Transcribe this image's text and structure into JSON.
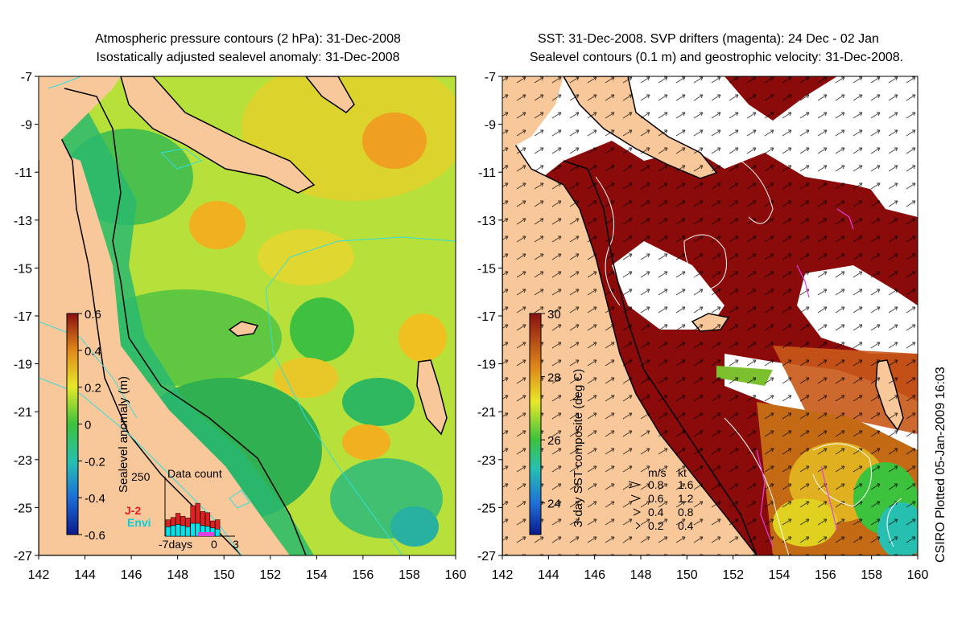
{
  "left_panel": {
    "title_line1": "Atmospheric pressure contours (2 hPa): 31-Dec-2008",
    "title_line2": "Isostatically adjusted sealevel anomaly: 31-Dec-2008",
    "y_ticks": [
      "-7",
      "-9",
      "-11",
      "-13",
      "-15",
      "-17",
      "-19",
      "-21",
      "-23",
      "-25",
      "-27"
    ],
    "x_ticks": [
      "142",
      "144",
      "146",
      "148",
      "150",
      "152",
      "154",
      "156",
      "158",
      "160"
    ],
    "colorbar": {
      "label": "Sealevel anomaly (m)",
      "ticks": [
        "0.6",
        "0.4",
        "0.2",
        "0",
        "-0.2",
        "-0.4",
        "-0.6"
      ],
      "range": [
        -0.6,
        0.6
      ]
    },
    "inset": {
      "title": "Data count",
      "ymax_label": "250",
      "x_labels": [
        "-7days",
        "0",
        "3"
      ],
      "series": [
        {
          "name": "J-2",
          "color": "#e02020",
          "values": [
            60,
            70,
            95,
            80,
            75,
            150,
            170,
            120,
            115,
            60,
            80,
            0,
            0,
            0
          ]
        },
        {
          "name": "Envi",
          "color": "#00e5ee",
          "values": [
            80,
            90,
            100,
            90,
            80,
            110,
            110,
            90,
            85,
            70,
            60,
            0,
            0,
            0
          ]
        }
      ],
      "ymax": 250
    }
  },
  "right_panel": {
    "title_line1": "SST: 31-Dec-2008. SVP drifters (magenta): 24 Dec - 02 Jan",
    "title_line2": "Sealevel contours (0.1 m) and geostrophic velocity: 31-Dec-2008.",
    "y_ticks": [
      "-7",
      "-9",
      "-11",
      "-13",
      "-15",
      "-17",
      "-19",
      "-21",
      "-23",
      "-25",
      "-27"
    ],
    "x_ticks": [
      "142",
      "144",
      "146",
      "148",
      "150",
      "152",
      "154",
      "156",
      "158",
      "160"
    ],
    "colorbar": {
      "label": "3-day SST composite (deg C)",
      "ticks": [
        "30",
        "28",
        "26",
        "24"
      ],
      "range": [
        23,
        30
      ]
    },
    "velocity_legend": {
      "header_ms": "m/s",
      "header_kt": "kt",
      "rows": [
        {
          "ms": "0.8",
          "kt": "1.6"
        },
        {
          "ms": "0.6",
          "kt": "1.2"
        },
        {
          "ms": "0.4",
          "kt": "0.8"
        },
        {
          "ms": "0.2",
          "kt": "0.4"
        }
      ]
    }
  },
  "credit": "CSIRO Plotted 05-Jan-2009 16:03",
  "colors": {
    "land": "#f9c89a",
    "cloud": "#ffffff",
    "coast": "#000000",
    "pressure_contour": "#33dddd",
    "drifter": "#e040e0"
  },
  "map_extent": {
    "lon": [
      142,
      160
    ],
    "lat": [
      -27,
      -7
    ]
  }
}
